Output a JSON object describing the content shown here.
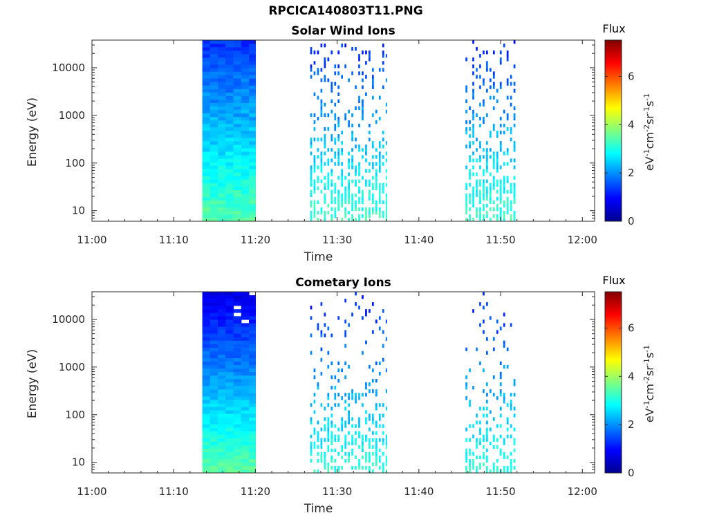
{
  "figure": {
    "title": "RPCICA140803T11.PNG"
  },
  "chart_data": [
    {
      "type": "heatmap",
      "title": "Solar Wind Ions",
      "xlabel": "Time",
      "ylabel": "Energy (eV)",
      "x_ticks": [
        "11:00",
        "11:10",
        "11:20",
        "11:30",
        "11:40",
        "11:50",
        "12:00"
      ],
      "x_range_minutes": [
        0,
        61.5
      ],
      "y_scale": "log",
      "y_ticks": [
        "10",
        "100",
        "1000",
        "10000"
      ],
      "y_range": [
        6,
        38000
      ],
      "colorbar": {
        "title": "Flux",
        "label": "eV-1cm-2sr-1s-1",
        "range": [
          0,
          7.5
        ],
        "ticks": [
          "0",
          "2",
          "4",
          "6"
        ],
        "colormap": "jet"
      },
      "intervals_minutes": [
        {
          "start": 13.5,
          "end": 20.0,
          "coverage": "continuous"
        },
        {
          "start": 26.7,
          "end": 36.0,
          "coverage": "sparse"
        },
        {
          "start": 45.7,
          "end": 52.0,
          "coverage": "sparse"
        }
      ]
    },
    {
      "type": "heatmap",
      "title": "Cometary Ions",
      "xlabel": "Time",
      "ylabel": "Energy (eV)",
      "x_ticks": [
        "11:00",
        "11:10",
        "11:20",
        "11:30",
        "11:40",
        "11:50",
        "12:00"
      ],
      "x_range_minutes": [
        0,
        61.5
      ],
      "y_scale": "log",
      "y_ticks": [
        "10",
        "100",
        "1000",
        "10000"
      ],
      "y_range": [
        6,
        38000
      ],
      "colorbar": {
        "title": "Flux",
        "label": "eV-1cm-2sr-1s-1",
        "range": [
          0,
          7.5
        ],
        "ticks": [
          "0",
          "2",
          "4",
          "6"
        ],
        "colormap": "jet"
      },
      "intervals_minutes": [
        {
          "start": 13.5,
          "end": 20.0,
          "coverage": "continuous"
        },
        {
          "start": 26.7,
          "end": 36.0,
          "coverage": "very sparse"
        },
        {
          "start": 45.7,
          "end": 52.0,
          "coverage": "very sparse"
        }
      ]
    }
  ]
}
